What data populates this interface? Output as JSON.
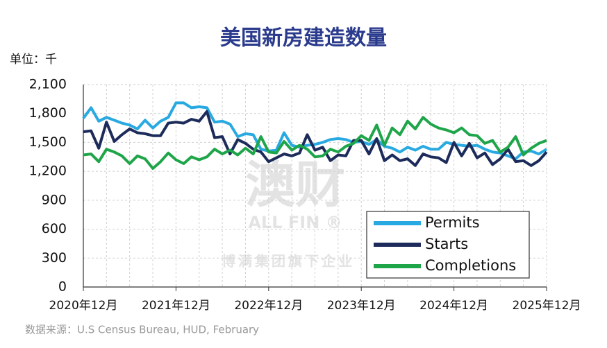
{
  "chart_data": {
    "type": "line",
    "title": "美国新房建造数量",
    "y_unit": "单位：千",
    "source": "数据来源：U.S Census Bureau, HUD, February",
    "watermark": {
      "logo": "澳财",
      "brand": "ALL FIN ®",
      "tagline": "博满集团旗下企业"
    },
    "categories": [
      "2020年12月",
      null,
      null,
      null,
      null,
      null,
      null,
      null,
      null,
      null,
      null,
      null,
      "2021年12月",
      null,
      null,
      null,
      null,
      null,
      null,
      null,
      null,
      null,
      null,
      null,
      "2022年12月",
      null,
      null,
      null,
      null,
      null,
      null,
      null,
      null,
      null,
      null,
      null,
      "2023年12月",
      null,
      null,
      null,
      null,
      null,
      null,
      null,
      null,
      null,
      null,
      null,
      "2024年12月",
      null,
      null,
      null,
      null,
      null,
      null,
      null,
      null,
      null,
      null,
      null,
      "2025年12月"
    ],
    "series": [
      {
        "name": "Permits",
        "color": "#29a9e1",
        "values": [
          1750,
          1860,
          1720,
          1760,
          1730,
          1700,
          1680,
          1640,
          1730,
          1650,
          1720,
          1760,
          1910,
          1910,
          1860,
          1870,
          1860,
          1710,
          1720,
          1690,
          1560,
          1590,
          1580,
          1430,
          1410,
          1420,
          1600,
          1470,
          1450,
          1470,
          1480,
          1500,
          1530,
          1540,
          1530,
          1500,
          1510,
          1480,
          1530,
          1460,
          1440,
          1400,
          1450,
          1420,
          1460,
          1430,
          1430,
          1500,
          1480,
          1470,
          1460,
          1470,
          1430,
          1400,
          1390,
          1360,
          1330,
          1400,
          1410,
          1380,
          1430
        ]
      },
      {
        "name": "Starts",
        "color": "#1c2b5a",
        "values": [
          1610,
          1620,
          1440,
          1710,
          1510,
          1580,
          1640,
          1600,
          1590,
          1570,
          1570,
          1700,
          1710,
          1700,
          1740,
          1720,
          1820,
          1550,
          1560,
          1380,
          1530,
          1490,
          1430,
          1400,
          1300,
          1340,
          1380,
          1360,
          1390,
          1580,
          1420,
          1450,
          1310,
          1370,
          1360,
          1520,
          1520,
          1380,
          1540,
          1310,
          1370,
          1310,
          1330,
          1260,
          1380,
          1350,
          1340,
          1290,
          1500,
          1360,
          1490,
          1340,
          1390,
          1270,
          1330,
          1430,
          1300,
          1310,
          1260,
          1310,
          1400
        ]
      },
      {
        "name": "Completions",
        "color": "#1fa549",
        "values": [
          1370,
          1380,
          1300,
          1430,
          1400,
          1360,
          1280,
          1360,
          1330,
          1230,
          1300,
          1390,
          1320,
          1280,
          1350,
          1320,
          1350,
          1430,
          1380,
          1420,
          1370,
          1440,
          1380,
          1560,
          1400,
          1390,
          1510,
          1420,
          1470,
          1430,
          1350,
          1360,
          1430,
          1400,
          1460,
          1490,
          1570,
          1520,
          1680,
          1470,
          1650,
          1580,
          1720,
          1640,
          1760,
          1690,
          1650,
          1630,
          1600,
          1650,
          1580,
          1570,
          1490,
          1520,
          1400,
          1450,
          1560,
          1370,
          1440,
          1490,
          1520
        ]
      }
    ],
    "ylim": [
      0,
      2100
    ],
    "yticks": [
      0,
      300,
      600,
      900,
      {
        "value": 1200,
        "label": "1,200"
      },
      {
        "value": 1500,
        "label": "1,500"
      },
      {
        "value": 1800,
        "label": "1,800"
      },
      {
        "value": 2100,
        "label": "2,100"
      }
    ],
    "grid": true,
    "legend": "lower-right"
  }
}
